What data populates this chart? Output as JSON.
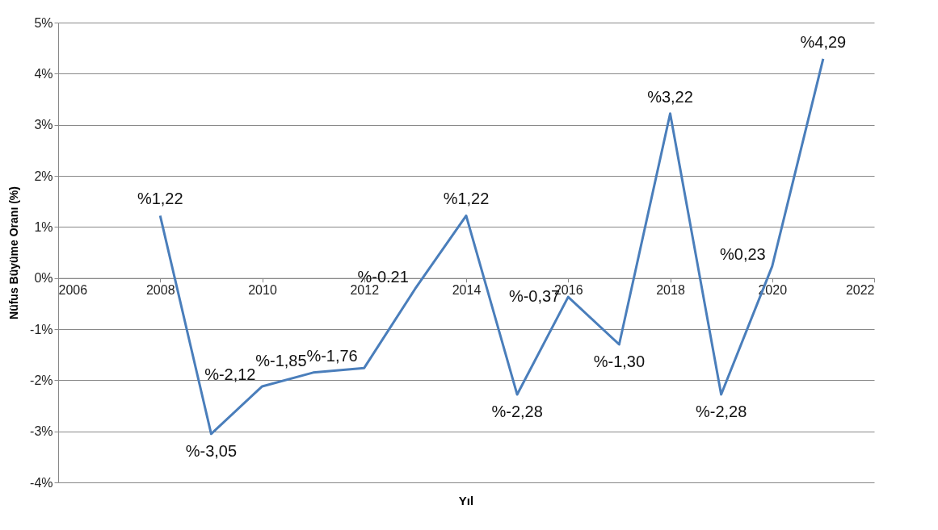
{
  "chart_data": {
    "type": "line",
    "xlabel": "Yıl",
    "ylabel": "Nüfus Büyüme Oranı (%)",
    "x": [
      2008,
      2009,
      2010,
      2011,
      2012,
      2013,
      2014,
      2015,
      2016,
      2017,
      2018,
      2019,
      2020,
      2021
    ],
    "series": [
      {
        "color": "#4a7ebb",
        "values": [
          1.22,
          -3.05,
          -2.12,
          -1.85,
          -1.76,
          -0.21,
          1.22,
          -2.28,
          -0.37,
          -1.3,
          3.22,
          -2.28,
          0.23,
          4.29
        ],
        "value_labels": [
          "%1,22",
          "%-3,05",
          "%-2,12",
          "%-1,85",
          "%-1,76",
          "%-0.21",
          "%1,22",
          "%-2,28",
          "%-0,37",
          "%-1,30",
          "%3,22",
          "%-2,28",
          "%0,23",
          "%4,29"
        ]
      }
    ],
    "xlim": [
      2006,
      2022
    ],
    "xticks": [
      2006,
      2008,
      2010,
      2012,
      2014,
      2016,
      2018,
      2020,
      2022
    ],
    "ylim": [
      -4,
      5
    ],
    "yticks": [
      {
        "value": -4,
        "label": "-4%"
      },
      {
        "value": -3,
        "label": "-3%"
      },
      {
        "value": -2,
        "label": "-2%"
      },
      {
        "value": -1,
        "label": "-1%"
      },
      {
        "value": 0,
        "label": "0%"
      },
      {
        "value": 1,
        "label": "1%"
      },
      {
        "value": 2,
        "label": "2%"
      },
      {
        "value": 3,
        "label": "3%"
      },
      {
        "value": 4,
        "label": "4%"
      },
      {
        "value": 5,
        "label": "5%"
      }
    ],
    "grid": "y",
    "legend": false,
    "marker": "none",
    "line_style": "solid"
  }
}
